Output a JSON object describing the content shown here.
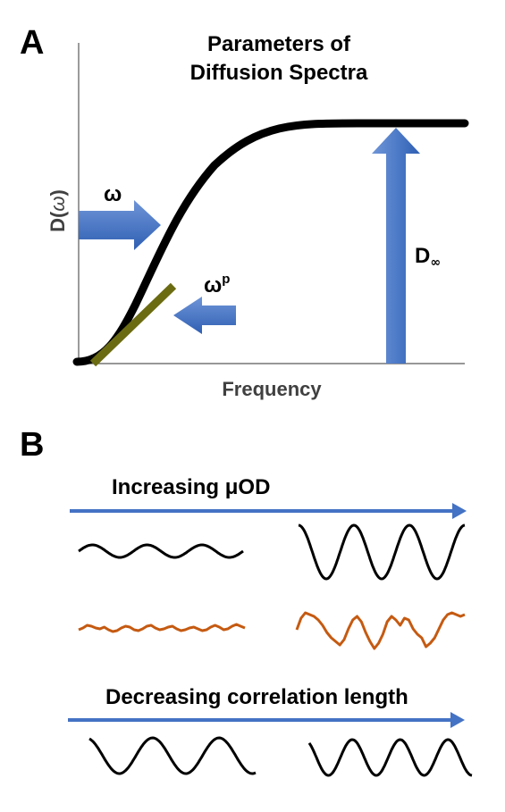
{
  "panel_a": {
    "letter": "A",
    "title_line1": "Parameters of",
    "title_line2": "Diffusion Spectra",
    "ylabel_prefix": "D(",
    "ylabel_symbol": "ω",
    "ylabel_suffix": ")",
    "xlabel": "Frequency",
    "omega_label": "ω",
    "omega_p_base": "ω",
    "omega_p_sup": "p",
    "d_inf_base": "D",
    "d_inf_sub": "∞"
  },
  "panel_b": {
    "letter": "B",
    "arrow1_label": "Increasing μOD",
    "arrow2_label": "Decreasing correlation length"
  },
  "colors": {
    "curve": "#000000",
    "arrow_blue": "#4472c4",
    "tangent_line": "#6b6b12",
    "wave_orange": "#c55a11",
    "axis": "#595959"
  }
}
